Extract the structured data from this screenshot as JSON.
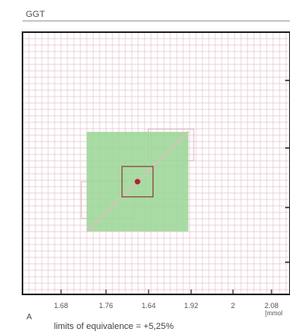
{
  "chart_data": {
    "type": "scatter",
    "title": "GGT",
    "x_tick_labels": [
      "1.68",
      "1.76",
      "1.64",
      "1.92",
      "2",
      "2.08"
    ],
    "x_unit_label": "[mmol",
    "point": {
      "x": 1.815,
      "y": 1.815
    },
    "equivalence_inner_box": {
      "x": [
        1.786,
        1.844
      ],
      "y": [
        1.786,
        1.844
      ]
    },
    "equivalence_outer_box": {
      "x": [
        1.72,
        1.91
      ],
      "y": [
        1.72,
        1.91
      ]
    },
    "reference_boxes": [
      {
        "x": [
          1.71,
          1.81
        ],
        "y": [
          1.745,
          1.815
        ]
      },
      {
        "x": [
          1.835,
          1.92
        ],
        "y": [
          1.855,
          1.915
        ]
      },
      {
        "x": [
          1.84,
          1.905
        ],
        "y": [
          1.845,
          1.905
        ]
      }
    ],
    "axis_range": {
      "x": [
        1.6,
        2.1
      ],
      "y": [
        1.6,
        2.1
      ]
    },
    "grid": true,
    "colors": {
      "outer_box": "#9fd89a",
      "inner_box_border": "#8f3c3c",
      "point": "#b0242e",
      "grid": "#e4c4cb",
      "reference_box": "#d8bcc4",
      "frame": "#222222"
    }
  },
  "footer": {
    "panel_letter": "A",
    "caption": "limits of equivalence = +5,25%"
  }
}
